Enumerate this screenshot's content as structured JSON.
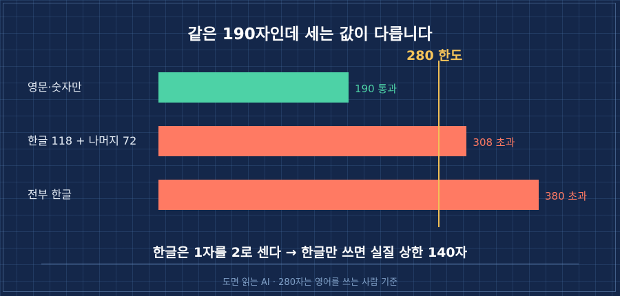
{
  "title": "같은 190자인데 세는 값이 다릅니다",
  "limit": {
    "value": 280,
    "label": "280 한도",
    "color": "#f2c057"
  },
  "chart_data": {
    "type": "bar",
    "orientation": "horizontal",
    "categories": [
      "영문·숫자만",
      "한글 118 + 나머지 72",
      "전부 한글"
    ],
    "values": [
      190,
      308,
      380
    ],
    "value_labels": [
      "190  통과",
      "308  초과",
      "380  초과"
    ],
    "colors": [
      "#4dd2a6",
      "#ff7a63",
      "#ff7a63"
    ],
    "label_colors": [
      "#4dd2a6",
      "#ff7a63",
      "#ff7a63"
    ],
    "xlim": [
      0,
      380
    ],
    "reference_line": 280,
    "grid": false,
    "legend": "none"
  },
  "subtitle": "한글은 1자를 2로 센다 → 한글만 쓰면 실질 상한 140자",
  "footer": "도면 읽는 AI · 280자는 영어를 쓰는 사람 기준"
}
